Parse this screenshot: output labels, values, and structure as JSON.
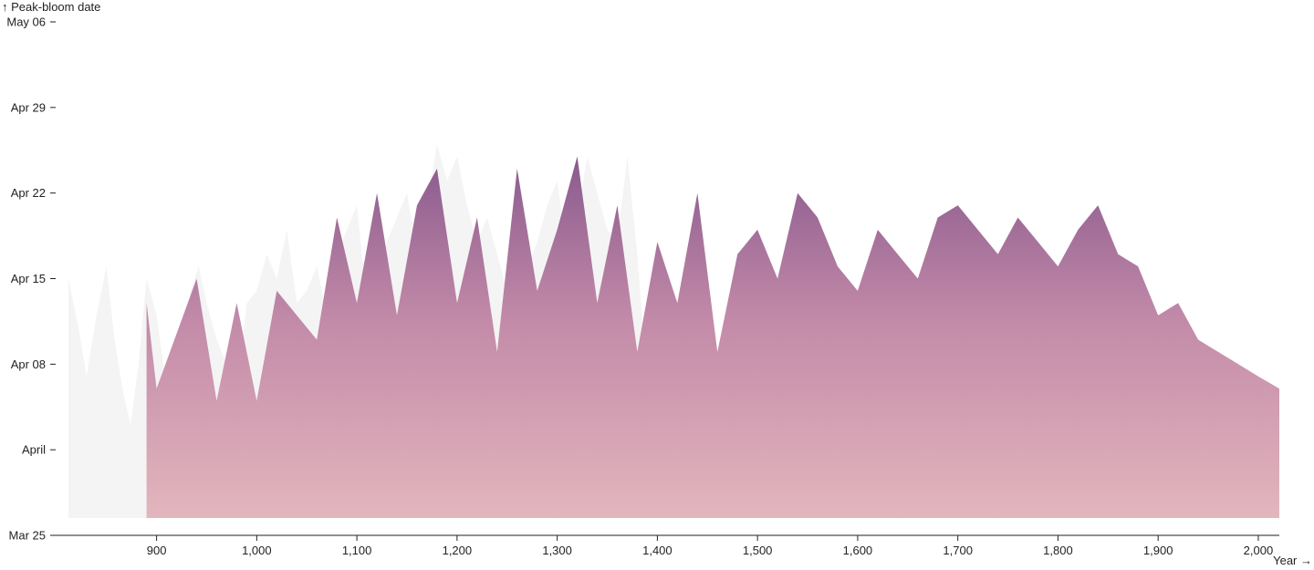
{
  "chart_data": {
    "type": "area",
    "ylabel": "↑ Peak-bloom date",
    "xlabel": "Year →",
    "x_ticks": [
      900,
      1000,
      1100,
      1200,
      1300,
      1400,
      1500,
      1600,
      1700,
      1800,
      1900,
      2000
    ],
    "x_tick_labels": [
      "900",
      "1,000",
      "1,100",
      "1,200",
      "1,300",
      "1,400",
      "1,500",
      "1,600",
      "1,700",
      "1,800",
      "1,900",
      "2,000"
    ],
    "y_ticks": [
      85,
      92,
      99,
      106,
      113,
      120,
      127
    ],
    "y_tick_labels": [
      "Mar 25",
      "April",
      "Apr 08",
      "Apr 15",
      "Apr 22",
      "Apr 29",
      "May 06"
    ],
    "xlim": [
      812,
      2021
    ],
    "ylim": [
      85,
      127
    ],
    "gradient_colors": {
      "bottom": "#e3b6bd",
      "middle": "#c28aa8",
      "top": "#8a5a8e"
    },
    "background_area_color": "#f4f4f4",
    "series": [
      {
        "name": "",
        "role": "background",
        "points": [
          [
            812,
            106
          ],
          [
            822,
            102
          ],
          [
            830,
            98
          ],
          [
            840,
            103
          ],
          [
            850,
            107
          ],
          [
            858,
            101
          ],
          [
            866,
            97
          ],
          [
            874,
            94
          ],
          [
            882,
            99
          ],
          [
            890,
            106
          ],
          [
            900,
            103
          ],
          [
            910,
            97
          ],
          [
            918,
            101
          ],
          [
            926,
            98
          ],
          [
            934,
            105
          ],
          [
            942,
            107
          ],
          [
            950,
            104
          ],
          [
            960,
            101
          ],
          [
            970,
            99
          ],
          [
            980,
            97
          ],
          [
            990,
            104
          ],
          [
            1000,
            105
          ],
          [
            1010,
            108
          ],
          [
            1020,
            106
          ],
          [
            1030,
            110
          ],
          [
            1040,
            104
          ],
          [
            1050,
            105
          ],
          [
            1060,
            107
          ],
          [
            1070,
            103
          ],
          [
            1080,
            108
          ],
          [
            1090,
            110
          ],
          [
            1100,
            112
          ],
          [
            1110,
            104
          ],
          [
            1120,
            106
          ],
          [
            1130,
            109
          ],
          [
            1140,
            111
          ],
          [
            1150,
            113
          ],
          [
            1160,
            108
          ],
          [
            1170,
            112
          ],
          [
            1180,
            117
          ],
          [
            1190,
            114
          ],
          [
            1200,
            116
          ],
          [
            1210,
            112
          ],
          [
            1220,
            109
          ],
          [
            1230,
            111
          ],
          [
            1240,
            108
          ],
          [
            1250,
            105
          ],
          [
            1260,
            110
          ],
          [
            1270,
            107
          ],
          [
            1280,
            109
          ],
          [
            1290,
            112
          ],
          [
            1300,
            114
          ],
          [
            1310,
            108
          ],
          [
            1320,
            111
          ],
          [
            1330,
            116
          ],
          [
            1340,
            113
          ],
          [
            1350,
            110
          ],
          [
            1360,
            109
          ],
          [
            1370,
            116
          ],
          [
            1380,
            108
          ],
          [
            1390,
            97
          ]
        ]
      },
      {
        "name": "",
        "role": "observed",
        "points": [
          [
            890,
            104
          ],
          [
            900,
            97
          ],
          [
            940,
            106
          ],
          [
            960,
            96
          ],
          [
            980,
            104
          ],
          [
            1000,
            96
          ],
          [
            1020,
            105
          ],
          [
            1060,
            101
          ],
          [
            1080,
            111
          ],
          [
            1100,
            104
          ],
          [
            1120,
            113
          ],
          [
            1140,
            103
          ],
          [
            1160,
            112
          ],
          [
            1180,
            115
          ],
          [
            1200,
            104
          ],
          [
            1220,
            111
          ],
          [
            1240,
            100
          ],
          [
            1260,
            115
          ],
          [
            1280,
            105
          ],
          [
            1300,
            110
          ],
          [
            1320,
            116
          ],
          [
            1340,
            104
          ],
          [
            1360,
            112
          ],
          [
            1380,
            100
          ],
          [
            1400,
            109
          ],
          [
            1420,
            104
          ],
          [
            1440,
            113
          ],
          [
            1460,
            100
          ],
          [
            1480,
            108
          ],
          [
            1500,
            110
          ],
          [
            1520,
            106
          ],
          [
            1540,
            113
          ],
          [
            1560,
            111
          ],
          [
            1580,
            107
          ],
          [
            1600,
            105
          ],
          [
            1620,
            110
          ],
          [
            1640,
            108
          ],
          [
            1660,
            106
          ],
          [
            1680,
            111
          ],
          [
            1700,
            112
          ],
          [
            1720,
            110
          ],
          [
            1740,
            108
          ],
          [
            1760,
            111
          ],
          [
            1780,
            109
          ],
          [
            1800,
            107
          ],
          [
            1820,
            110
          ],
          [
            1840,
            112
          ],
          [
            1860,
            108
          ],
          [
            1880,
            107
          ],
          [
            1900,
            103
          ],
          [
            1920,
            104
          ],
          [
            1940,
            101
          ],
          [
            1960,
            100
          ],
          [
            1980,
            99
          ],
          [
            2000,
            98
          ],
          [
            2021,
            97
          ]
        ]
      }
    ],
    "grid": false,
    "legend": "none"
  }
}
